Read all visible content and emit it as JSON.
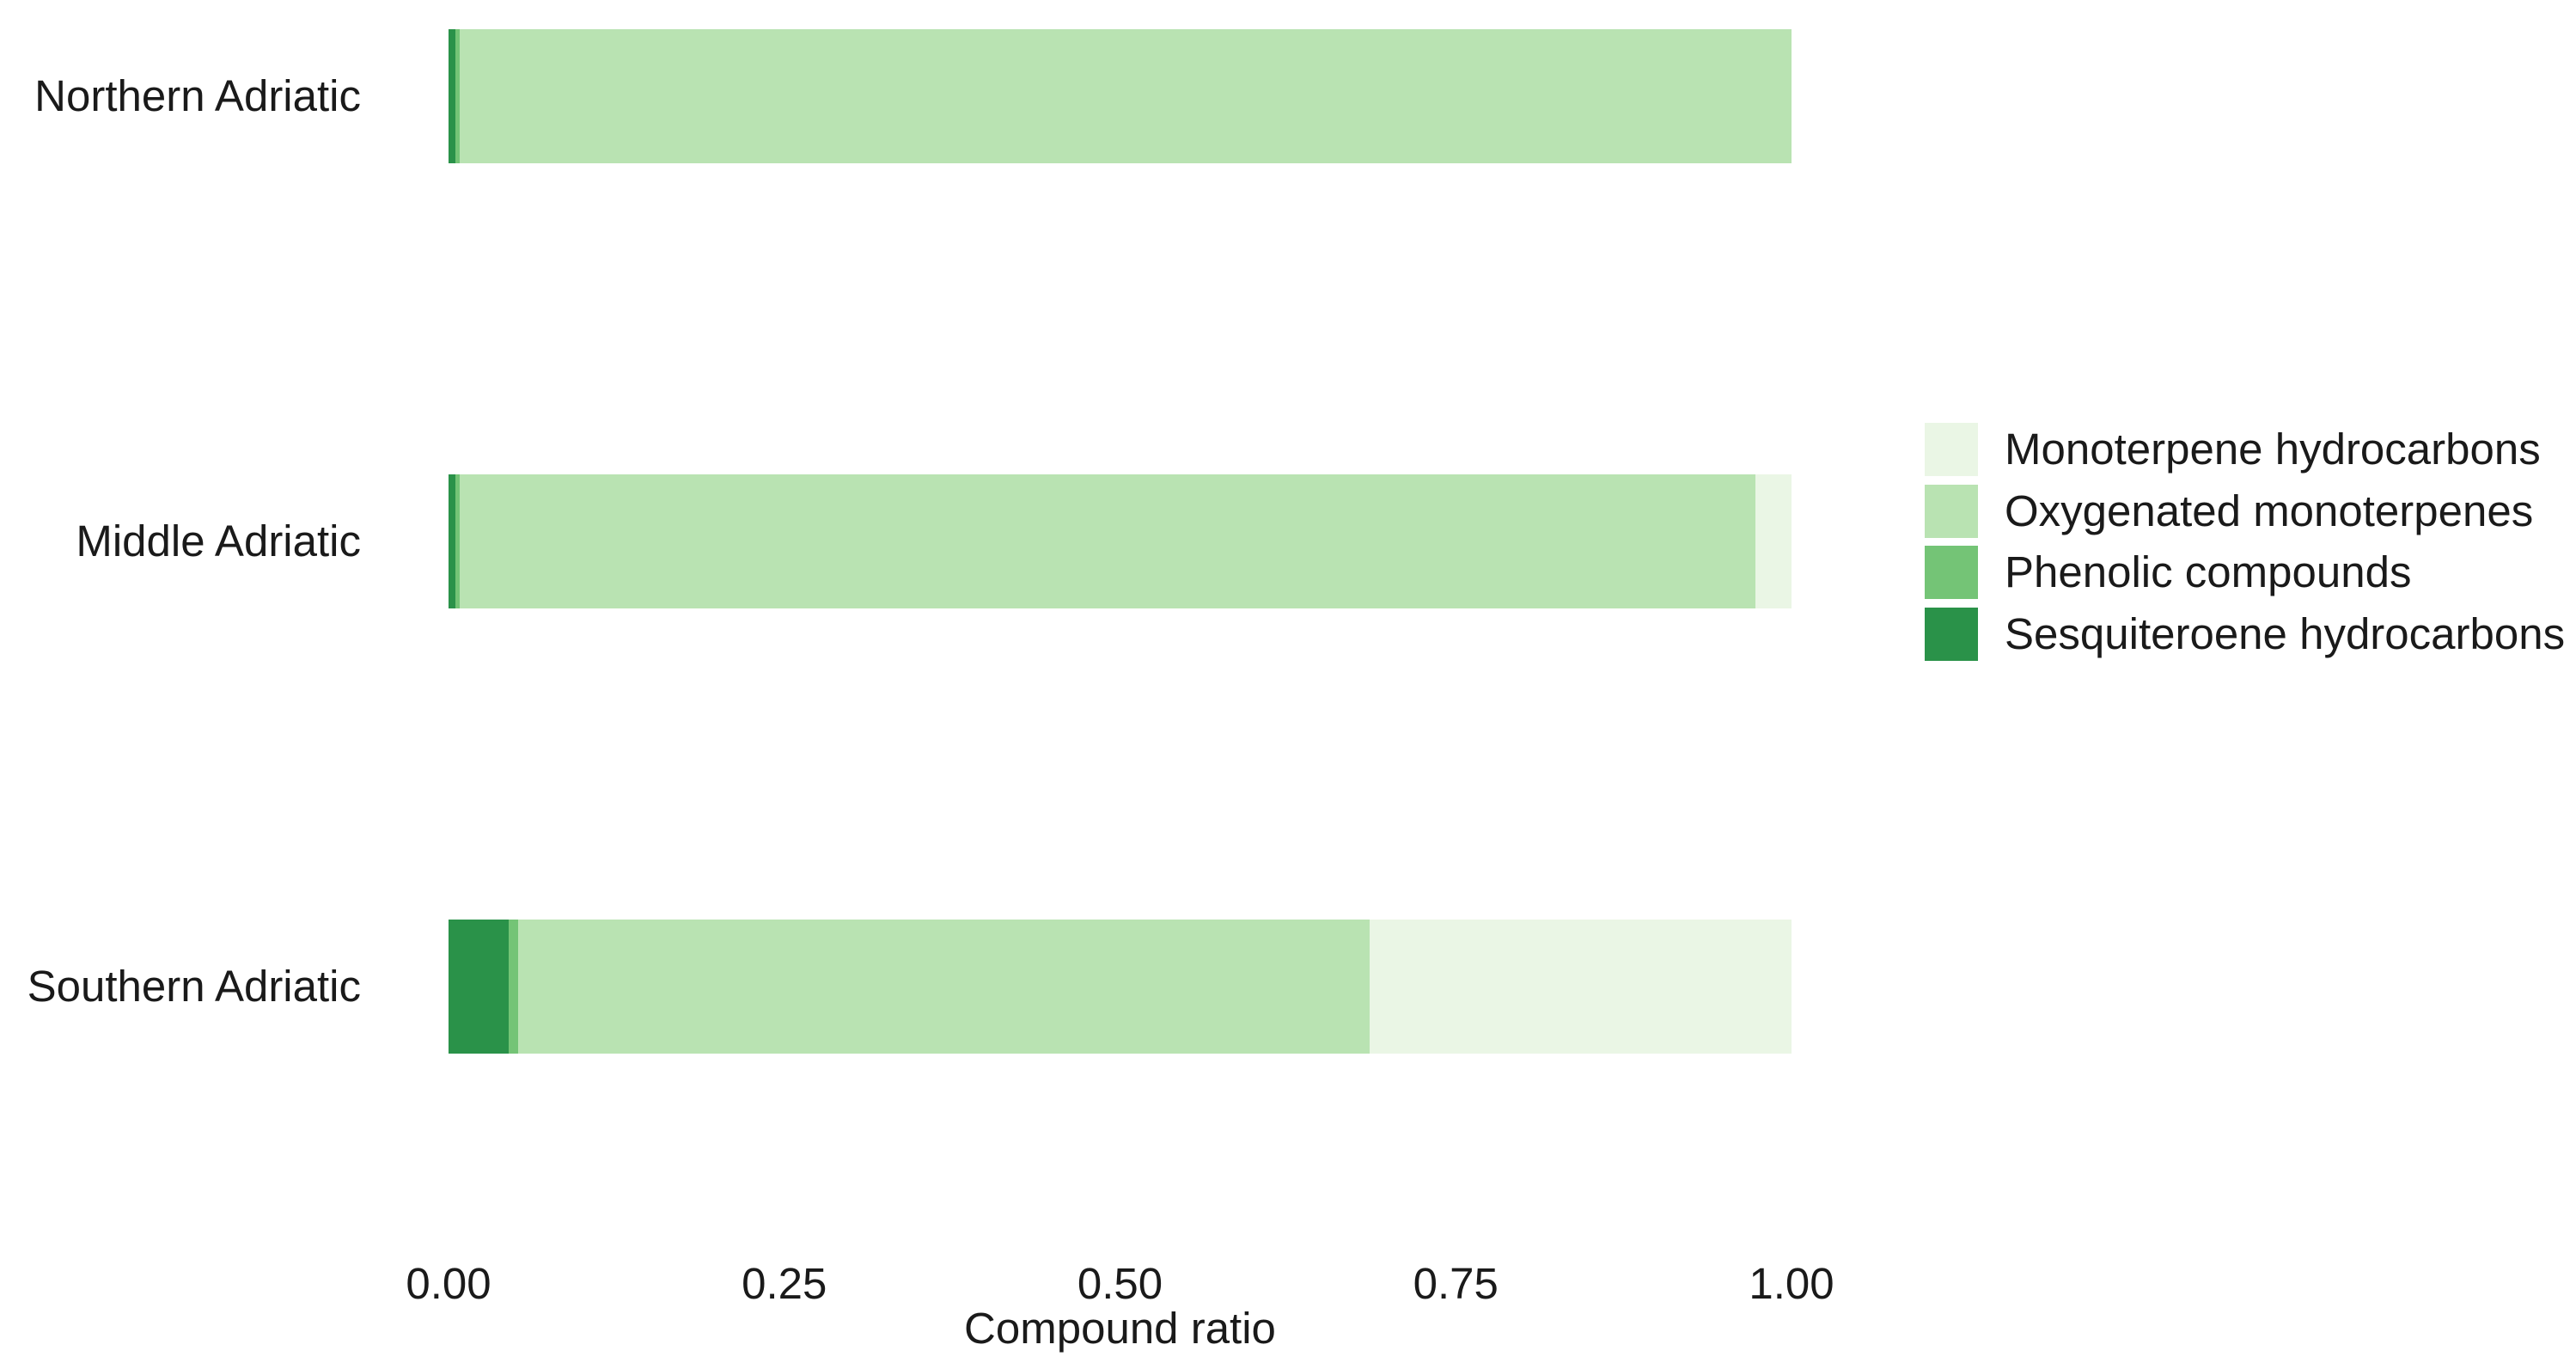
{
  "chart_data": {
    "type": "bar",
    "orientation": "horizontal",
    "stacked": true,
    "title": "",
    "xlabel": "Compound ratio",
    "ylabel": "",
    "xlim": [
      0,
      1
    ],
    "x_ticks": {
      "values": [
        0,
        0.25,
        0.5,
        0.75,
        1
      ],
      "labels": [
        "0.00",
        "0.25",
        "0.50",
        "0.75",
        "1.00"
      ]
    },
    "categories": [
      "Northern Adriatic",
      "Middle Adriatic",
      "Southern Adriatic"
    ],
    "series": [
      {
        "name": "Monoterpene hydrocarbons",
        "color": "#eaf6e5",
        "values": [
          0.0,
          0.027,
          0.314
        ]
      },
      {
        "name": "Oxygenated monoterpenes",
        "color": "#b9e3b2",
        "values": [
          0.992,
          0.965,
          0.634
        ]
      },
      {
        "name": "Phenolic compounds",
        "color": "#74c476",
        "values": [
          0.003,
          0.003,
          0.007
        ]
      },
      {
        "name": "Sesquiteroene hydrocarbons",
        "color": "#2a9249",
        "values": [
          0.005,
          0.005,
          0.045
        ]
      }
    ],
    "stack_order": "reversed-series-darkest-first",
    "legend_position": "right",
    "grid": false,
    "background": "#ffffff"
  }
}
